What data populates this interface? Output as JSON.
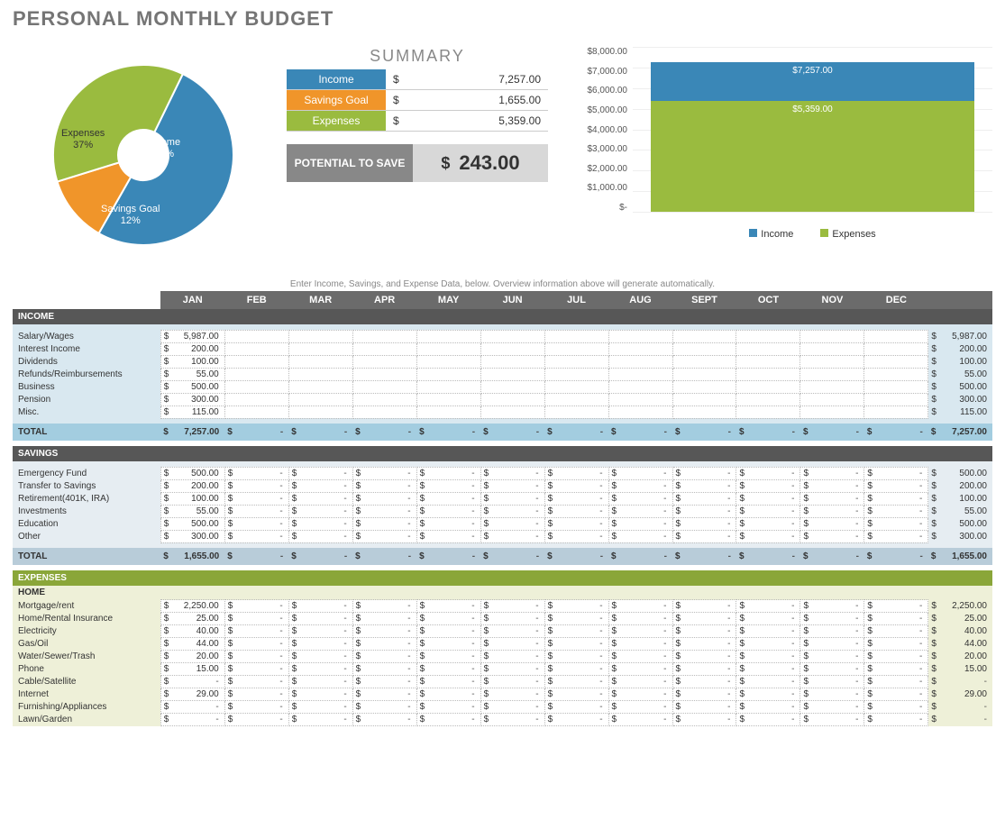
{
  "title": "PERSONAL MONTHLY BUDGET",
  "colors": {
    "income": "#3a87b7",
    "savings": "#f0952a",
    "expenses": "#9abb3f",
    "header_bar": "#6b6b6b",
    "section_dark": "#575757",
    "income_bg": "#d9e8f0",
    "income_total_bg": "#a3cde0",
    "savings_bg": "#e6edf2",
    "savings_total_bg": "#b8ccd9",
    "expenses_head": "#8aa639",
    "expenses_bg": "#eef0d8",
    "potential_label_bg": "#888888",
    "potential_value_bg": "#d8d8d8"
  },
  "pie": {
    "slices": [
      {
        "name": "Income",
        "percent": 51,
        "color": "#3a87b7"
      },
      {
        "name": "Expenses",
        "percent": 37,
        "color": "#9abb3f"
      },
      {
        "name": "Savings Goal",
        "percent": 12,
        "color": "#f0952a"
      }
    ],
    "label_income": "Income\n51%",
    "label_expenses": "Expenses\n37%",
    "label_savings": "Savings Goal\n12%"
  },
  "summary": {
    "title": "SUMMARY",
    "rows": [
      {
        "label": "Income",
        "color": "#3a87b7",
        "currency": "$",
        "value": "7,257.00"
      },
      {
        "label": "Savings Goal",
        "color": "#f0952a",
        "currency": "$",
        "value": "1,655.00"
      },
      {
        "label": "Expenses",
        "color": "#9abb3f",
        "currency": "$",
        "value": "5,359.00"
      }
    ],
    "potential_label": "POTENTIAL TO SAVE",
    "potential_currency": "$",
    "potential_value": "243.00"
  },
  "bar_chart": {
    "ymax": 8000,
    "ticks": [
      "$8,000.00",
      "$7,000.00",
      "$6,000.00",
      "$5,000.00",
      "$4,000.00",
      "$3,000.00",
      "$2,000.00",
      "$1,000.00",
      "$-"
    ],
    "bars": [
      {
        "label": "$7,257.00",
        "value": 7257,
        "color": "#3a87b7",
        "legend": "Income"
      },
      {
        "label": "$5,359.00",
        "value": 5359,
        "color": "#9abb3f",
        "legend": "Expenses"
      }
    ]
  },
  "instruction": "Enter Income, Savings, and Expense Data, below.  Overview information above will generate automatically.",
  "months": [
    "JAN",
    "FEB",
    "MAR",
    "APR",
    "MAY",
    "JUN",
    "JUL",
    "AUG",
    "SEPT",
    "OCT",
    "NOV",
    "DEC"
  ],
  "income": {
    "section": "INCOME",
    "rows": [
      {
        "name": "Salary/Wages",
        "jan": "5,987.00",
        "total": "5,987.00"
      },
      {
        "name": "Interest Income",
        "jan": "200.00",
        "total": "200.00"
      },
      {
        "name": "Dividends",
        "jan": "100.00",
        "total": "100.00"
      },
      {
        "name": "Refunds/Reimbursements",
        "jan": "55.00",
        "total": "55.00"
      },
      {
        "name": "Business",
        "jan": "500.00",
        "total": "500.00"
      },
      {
        "name": "Pension",
        "jan": "300.00",
        "total": "300.00"
      },
      {
        "name": "Misc.",
        "jan": "115.00",
        "total": "115.00"
      }
    ],
    "total_label": "TOTAL",
    "total_jan": "7,257.00",
    "total_year": "7,257.00"
  },
  "savings": {
    "section": "SAVINGS",
    "rows": [
      {
        "name": "Emergency Fund",
        "jan": "500.00",
        "total": "500.00"
      },
      {
        "name": "Transfer to Savings",
        "jan": "200.00",
        "total": "200.00"
      },
      {
        "name": "Retirement(401K, IRA)",
        "jan": "100.00",
        "total": "100.00"
      },
      {
        "name": "Investments",
        "jan": "55.00",
        "total": "55.00"
      },
      {
        "name": "Education",
        "jan": "500.00",
        "total": "500.00"
      },
      {
        "name": "Other",
        "jan": "300.00",
        "total": "300.00"
      }
    ],
    "total_label": "TOTAL",
    "total_jan": "1,655.00",
    "total_year": "1,655.00"
  },
  "expenses": {
    "section": "EXPENSES",
    "sub": "HOME",
    "rows": [
      {
        "name": "Mortgage/rent",
        "jan": "2,250.00",
        "total": "2,250.00"
      },
      {
        "name": "Home/Rental Insurance",
        "jan": "25.00",
        "total": "25.00"
      },
      {
        "name": "Electricity",
        "jan": "40.00",
        "total": "40.00"
      },
      {
        "name": "Gas/Oil",
        "jan": "44.00",
        "total": "44.00"
      },
      {
        "name": "Water/Sewer/Trash",
        "jan": "20.00",
        "total": "20.00"
      },
      {
        "name": "Phone",
        "jan": "15.00",
        "total": "15.00"
      },
      {
        "name": "Cable/Satellite",
        "jan": "-",
        "total": "-"
      },
      {
        "name": "Internet",
        "jan": "29.00",
        "total": "29.00"
      },
      {
        "name": "Furnishing/Appliances",
        "jan": "-",
        "total": "-"
      },
      {
        "name": "Lawn/Garden",
        "jan": "-",
        "total": "-"
      }
    ]
  },
  "cur": "$",
  "dash": "-"
}
